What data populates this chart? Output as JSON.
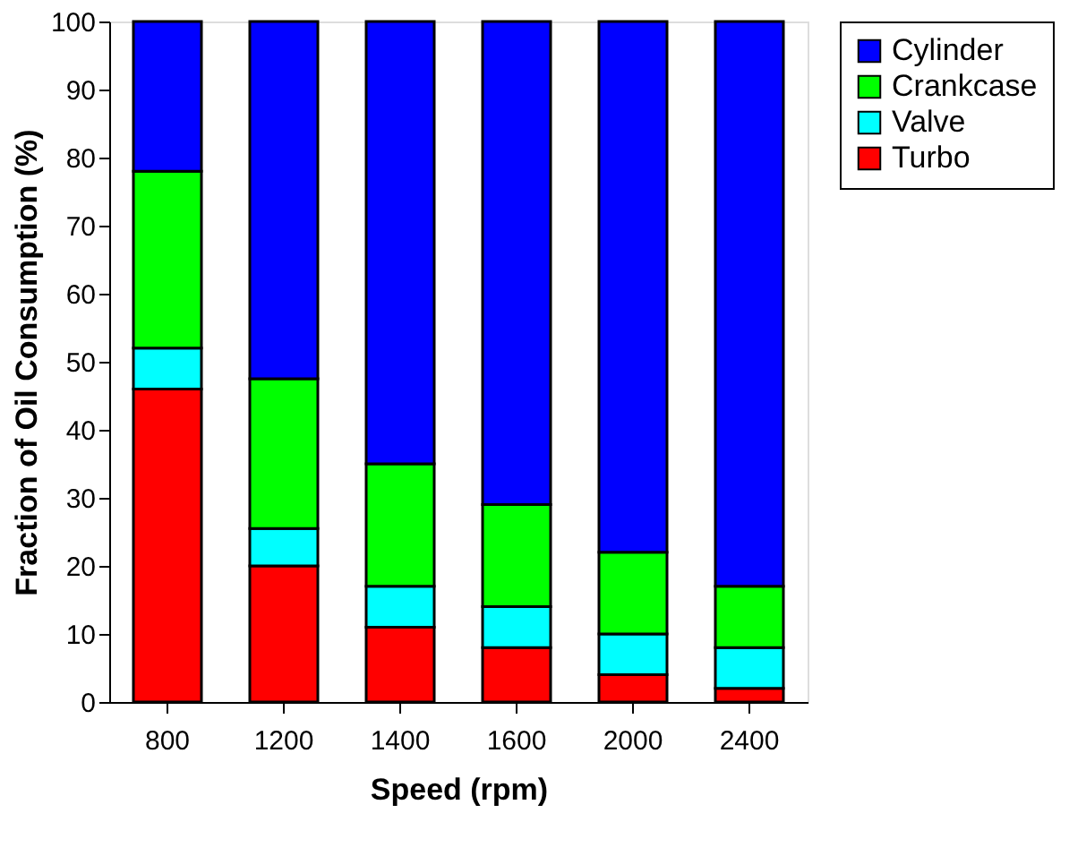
{
  "chart_data": {
    "type": "bar",
    "stacked": true,
    "xlabel": "Speed (rpm)",
    "ylabel": "Fraction of Oil Consumption (%)",
    "categories": [
      "800",
      "1200",
      "1400",
      "1600",
      "2000",
      "2400"
    ],
    "series": [
      {
        "name": "Turbo",
        "color": "#ff0000",
        "values": [
          46,
          20,
          11,
          8,
          4,
          2
        ]
      },
      {
        "name": "Valve",
        "color": "#00ffff",
        "values": [
          6,
          5.5,
          6,
          6,
          6,
          6
        ]
      },
      {
        "name": "Crankcase",
        "color": "#00ff00",
        "values": [
          26,
          22,
          18,
          15,
          12,
          9
        ]
      },
      {
        "name": "Cylinder",
        "color": "#0000ff",
        "values": [
          22,
          52.5,
          65,
          71,
          78,
          83
        ]
      }
    ],
    "ylim": [
      0,
      100
    ],
    "yticks": [
      0,
      10,
      20,
      30,
      40,
      50,
      60,
      70,
      80,
      90,
      100
    ],
    "grid": false,
    "legend": "right"
  }
}
